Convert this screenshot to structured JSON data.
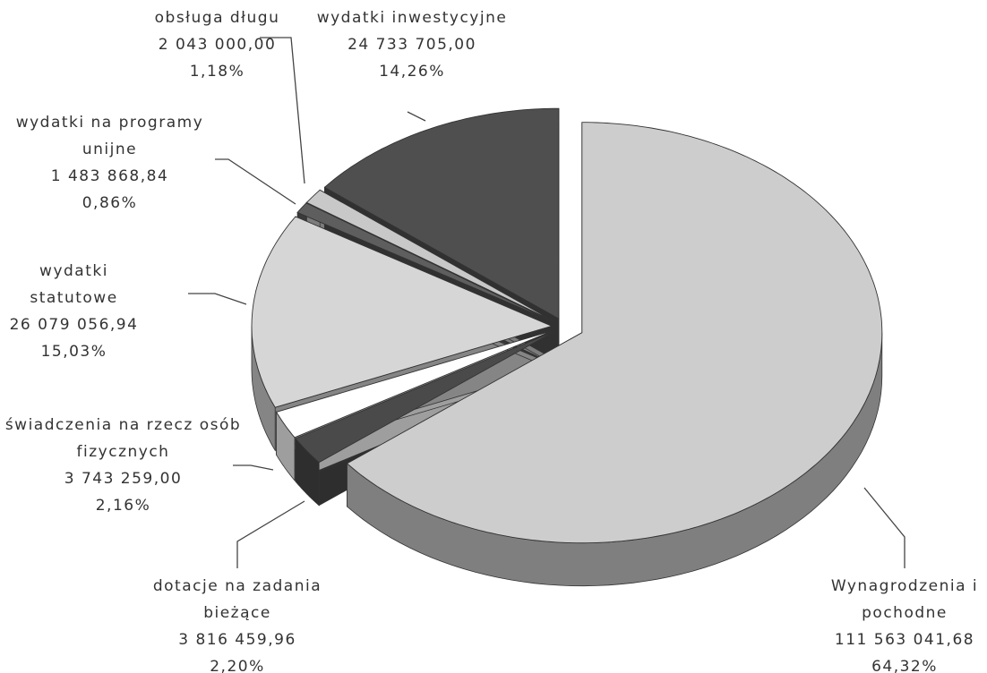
{
  "chart_data": {
    "type": "pie",
    "categories": [
      "Wynagrodzenia i pochodne",
      "dotacje na zadania bieżące",
      "świadczenia na rzecz osób fizycznych",
      "wydatki statutowe",
      "wydatki na programy unijne",
      "obsługa długu",
      "wydatki inwestycyjne"
    ],
    "values": [
      111563041.68,
      3816459.96,
      3743259,
      26079056.94,
      1483868.84,
      2043000,
      24733705
    ],
    "value_labels": [
      "111 563 041,68",
      "3 816 459,96",
      "3 743 259,00",
      "26 079 056,94",
      "1 483 868,84",
      "2 043 000,00",
      "24 733 705,00"
    ],
    "percents": [
      64.32,
      2.2,
      2.16,
      15.03,
      0.86,
      1.18,
      14.26
    ],
    "percent_labels": [
      "64,32%",
      "2,20%",
      "2,16%",
      "15,03%",
      "0,86%",
      "1,18%",
      "14,26%"
    ],
    "colors": [
      "#cdcdcd",
      "#4a4a4a",
      "#ffffff",
      "#d6d6d6",
      "#5e5e5e",
      "#c8c8c8",
      "#4f4f4f"
    ]
  }
}
